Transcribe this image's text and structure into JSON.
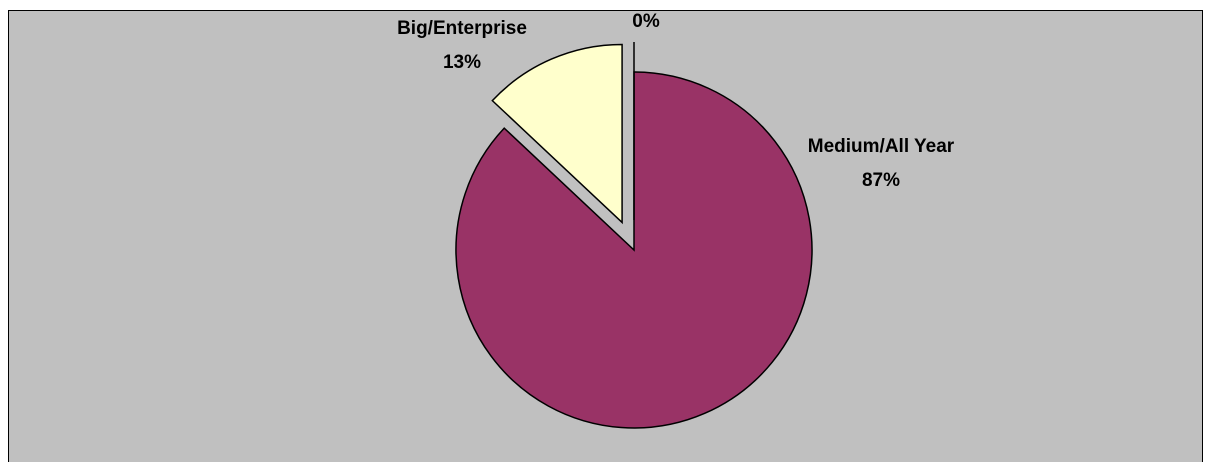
{
  "chart_data": {
    "type": "pie",
    "title": "",
    "categories": [
      "Medium/All Year",
      "Big/Enterprise",
      ""
    ],
    "values": [
      87,
      13,
      0
    ],
    "value_labels": [
      "87%",
      "13%",
      "0%"
    ],
    "colors": [
      "#993366",
      "#ffffcc",
      "#ffffff"
    ],
    "exploded": [
      false,
      true,
      true
    ],
    "legend": "none",
    "background": "#c0c0c0"
  }
}
